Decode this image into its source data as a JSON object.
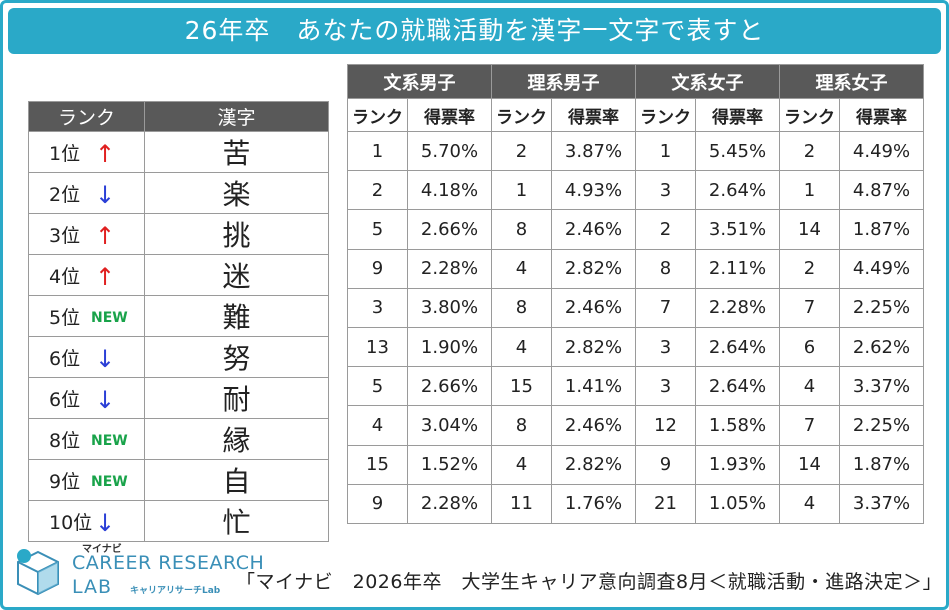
{
  "title": "26年卒　あなたの就職活動を漢字一文字で表すと",
  "rank_table": {
    "headers": [
      "ランク",
      "漢字"
    ],
    "rows": [
      {
        "rank": "1位",
        "change": "up",
        "kanji": "苦"
      },
      {
        "rank": "2位",
        "change": "down",
        "kanji": "楽"
      },
      {
        "rank": "3位",
        "change": "up",
        "kanji": "挑"
      },
      {
        "rank": "4位",
        "change": "up",
        "kanji": "迷"
      },
      {
        "rank": "5位",
        "change": "new",
        "kanji": "難"
      },
      {
        "rank": "6位",
        "change": "down",
        "kanji": "努"
      },
      {
        "rank": "6位",
        "change": "down",
        "kanji": "耐"
      },
      {
        "rank": "8位",
        "change": "new",
        "kanji": "縁"
      },
      {
        "rank": "9位",
        "change": "new",
        "kanji": "自"
      },
      {
        "rank": "10位",
        "change": "down",
        "kanji": "忙"
      }
    ],
    "new_label": "NEW",
    "arrow_up": "↑",
    "arrow_down": "↓"
  },
  "data_table": {
    "groups": [
      "文系男子",
      "理系男子",
      "文系女子",
      "理系女子"
    ],
    "sub_headers": [
      "ランク",
      "得票率"
    ],
    "rows": [
      [
        [
          "1",
          "5.70%"
        ],
        [
          "2",
          "3.87%"
        ],
        [
          "1",
          "5.45%"
        ],
        [
          "2",
          "4.49%"
        ]
      ],
      [
        [
          "2",
          "4.18%"
        ],
        [
          "1",
          "4.93%"
        ],
        [
          "3",
          "2.64%"
        ],
        [
          "1",
          "4.87%"
        ]
      ],
      [
        [
          "5",
          "2.66%"
        ],
        [
          "8",
          "2.46%"
        ],
        [
          "2",
          "3.51%"
        ],
        [
          "14",
          "1.87%"
        ]
      ],
      [
        [
          "9",
          "2.28%"
        ],
        [
          "4",
          "2.82%"
        ],
        [
          "8",
          "2.11%"
        ],
        [
          "2",
          "4.49%"
        ]
      ],
      [
        [
          "3",
          "3.80%"
        ],
        [
          "8",
          "2.46%"
        ],
        [
          "7",
          "2.28%"
        ],
        [
          "7",
          "2.25%"
        ]
      ],
      [
        [
          "13",
          "1.90%"
        ],
        [
          "4",
          "2.82%"
        ],
        [
          "3",
          "2.64%"
        ],
        [
          "6",
          "2.62%"
        ]
      ],
      [
        [
          "5",
          "2.66%"
        ],
        [
          "15",
          "1.41%"
        ],
        [
          "3",
          "2.64%"
        ],
        [
          "4",
          "3.37%"
        ]
      ],
      [
        [
          "4",
          "3.04%"
        ],
        [
          "8",
          "2.46%"
        ],
        [
          "12",
          "1.58%"
        ],
        [
          "7",
          "2.25%"
        ]
      ],
      [
        [
          "15",
          "1.52%"
        ],
        [
          "4",
          "2.82%"
        ],
        [
          "9",
          "1.93%"
        ],
        [
          "14",
          "1.87%"
        ]
      ],
      [
        [
          "9",
          "2.28%"
        ],
        [
          "11",
          "1.76%"
        ],
        [
          "21",
          "1.05%"
        ],
        [
          "4",
          "3.37%"
        ]
      ]
    ]
  },
  "logo": {
    "small": "マイナビ",
    "main": "CAREER RESEARCH",
    "lab": "LAB",
    "sub": "キャリアリサーチLab",
    "icon": "cube-logo-icon"
  },
  "source": "「マイナビ　2026年卒　大学生キャリア意向調査8月＜就職活動・進路決定＞」",
  "colors": {
    "accent": "#2aa9c8",
    "header_dark": "#595959",
    "arrow_up": "#e02020",
    "arrow_down": "#2b3fd6",
    "new_badge": "#19a34a"
  }
}
